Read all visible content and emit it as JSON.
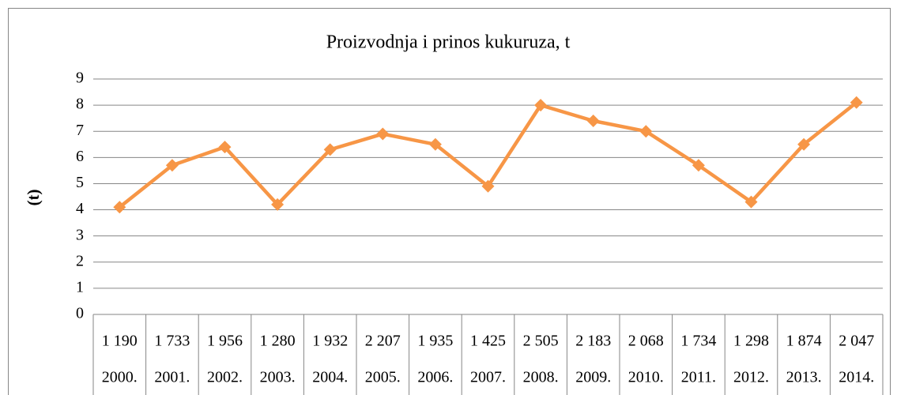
{
  "chart_data": {
    "type": "line",
    "title": "Proizvodnja i prinos  kukuruza, t",
    "y_label": "(t)",
    "categories": [
      "2000.",
      "2001.",
      "2002.",
      "2003.",
      "2004.",
      "2005.",
      "2006.",
      "2007.",
      "2008.",
      "2009.",
      "2010.",
      "2011.",
      "2012.",
      "2013.",
      "2014."
    ],
    "production_labels": [
      "1 190",
      "1 733",
      "1 956",
      "1 280",
      "1 932",
      "2 207",
      "1 935",
      "1 425",
      "2 505",
      "2 183",
      "2 068",
      "1 734",
      "1 298",
      "1 874",
      "2 047"
    ],
    "series": [
      {
        "color": "#f79646",
        "values": [
          4.1,
          5.7,
          6.4,
          4.2,
          6.3,
          6.9,
          6.5,
          4.9,
          8.0,
          7.4,
          7.0,
          5.7,
          4.3,
          6.5,
          8.1
        ]
      }
    ],
    "ylim": [
      0,
      9
    ],
    "yticks": [
      0,
      1,
      2,
      3,
      4,
      5,
      6,
      7,
      8,
      9
    ],
    "grid": true
  }
}
